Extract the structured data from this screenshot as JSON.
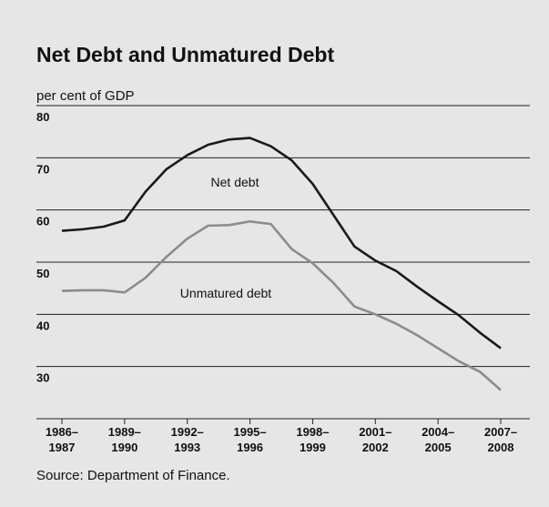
{
  "chart_data": {
    "type": "line",
    "title": "Net Debt and Unmatured Debt",
    "y_label": "per cent of GDP",
    "source": "Source: Department of Finance.",
    "categories": [
      "1986–\n1987",
      null,
      null,
      "1989–\n1990",
      null,
      null,
      "1992–\n1993",
      null,
      null,
      "1995–\n1996",
      null,
      null,
      "1998–\n1999",
      null,
      null,
      "2001–\n2002",
      null,
      null,
      "2004–\n2005",
      null,
      null,
      "2007–\n2008"
    ],
    "series": [
      {
        "name": "Net debt",
        "color": "#1a1a1a",
        "values": [
          56,
          56.3,
          56.8,
          58,
          63.5,
          67.8,
          70.5,
          72.5,
          73.5,
          73.8,
          72.2,
          69.5,
          65,
          59,
          53,
          50.3,
          48.3,
          45.3,
          42.5,
          39.8,
          36.5,
          33.5
        ]
      },
      {
        "name": "Unmatured debt",
        "color": "#8c8c8c",
        "values": [
          44.5,
          44.6,
          44.6,
          44.2,
          47,
          51,
          54.5,
          57,
          57.1,
          57.8,
          57.3,
          52.5,
          49.8,
          46,
          41.5,
          40,
          38.2,
          36,
          33.5,
          31,
          29,
          25.5
        ]
      }
    ],
    "ylim": [
      20,
      80
    ],
    "yticks": [
      30,
      40,
      50,
      60,
      70,
      80
    ],
    "grid": true
  }
}
